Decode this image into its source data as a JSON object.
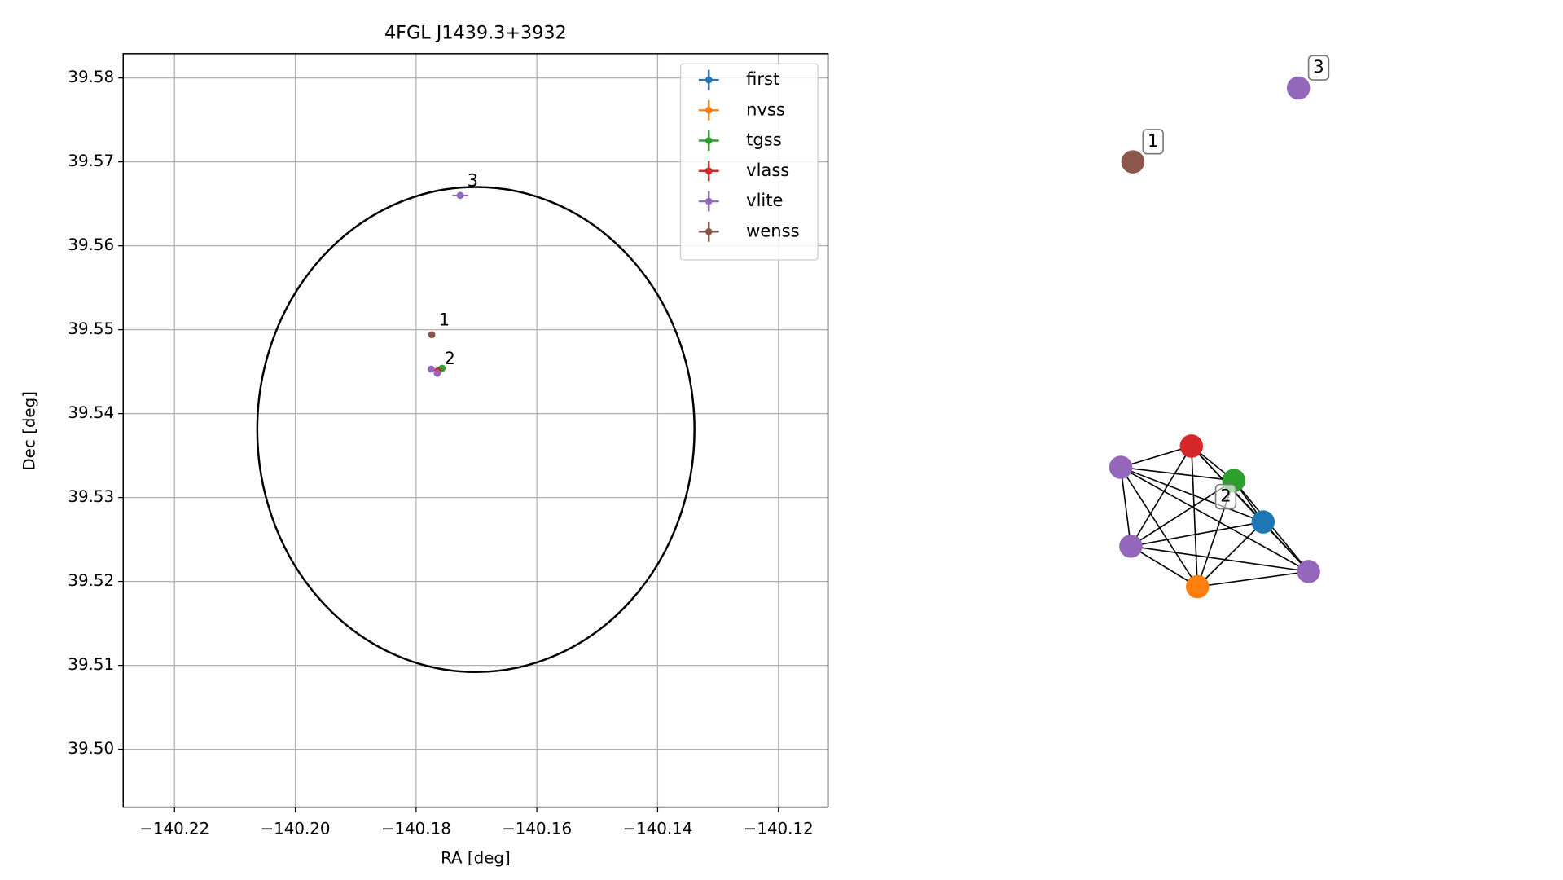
{
  "chart_data": [
    {
      "type": "scatter",
      "title": "4FGL J1439.3+3932",
      "x_label": "RA [deg]",
      "y_label": "Dec [deg]",
      "xlim": [
        -140.2285,
        -140.1118
      ],
      "ylim": [
        39.4931,
        39.5829
      ],
      "xticks": [
        {
          "value": -140.22,
          "label": "−140.22"
        },
        {
          "value": -140.2,
          "label": "−140.20"
        },
        {
          "value": -140.18,
          "label": "−140.18"
        },
        {
          "value": -140.16,
          "label": "−140.16"
        },
        {
          "value": -140.14,
          "label": "−140.14"
        },
        {
          "value": -140.12,
          "label": "−140.12"
        }
      ],
      "yticks": [
        {
          "value": 39.5,
          "label": "39.50"
        },
        39.51,
        39.52,
        39.53,
        39.54,
        39.55,
        39.56,
        39.57,
        39.58
      ],
      "grid": true,
      "legend": "upper right",
      "series": [
        {
          "name": "first",
          "color": "#1f77b4",
          "x": [
            -140.1763
          ],
          "values": [
            39.5451
          ],
          "xerr": [
            0.0003
          ],
          "yerr": [
            0.0003
          ]
        },
        {
          "name": "nvss",
          "color": "#ff7f0e",
          "x": [
            -140.1764
          ],
          "values": [
            39.545
          ],
          "xerr": [
            0.0003
          ],
          "yerr": [
            0.0003
          ]
        },
        {
          "name": "tgss",
          "color": "#2ca02c",
          "x": [
            -140.1757
          ],
          "values": [
            39.5454
          ],
          "xerr": [
            0.0003
          ],
          "yerr": [
            0.0003
          ]
        },
        {
          "name": "vlass",
          "color": "#d62728",
          "x": [
            -140.1764
          ],
          "values": [
            39.5451
          ],
          "xerr": [
            0.0003
          ],
          "yerr": [
            0.0003
          ]
        },
        {
          "name": "vlite",
          "color": "#9467bd",
          "x": [
            -140.1775,
            -140.1765,
            -140.1727
          ],
          "values": [
            39.5453,
            39.5448,
            39.566
          ],
          "xerr": [
            0.0004,
            0.0004,
            0.0013
          ],
          "yerr": [
            0.0003,
            0.0003,
            0.0004
          ]
        },
        {
          "name": "wenss",
          "color": "#8c564b",
          "x": [
            -140.1774
          ],
          "values": [
            39.5494
          ],
          "xerr": [
            0.0003
          ],
          "yerr": [
            0.0003
          ]
        }
      ],
      "ellipse": {
        "x": -140.1701,
        "y": 39.5381,
        "width": 0.0724,
        "height": 0.0578,
        "color": "#000000"
      },
      "annotations": [
        {
          "text": "1",
          "x": -140.1774,
          "y": 39.5494
        },
        {
          "text": "2",
          "x": -140.1765,
          "y": 39.5448
        },
        {
          "text": "3",
          "x": -140.1727,
          "y": 39.566
        }
      ]
    },
    {
      "type": "network",
      "nodes": [
        {
          "color": "#8c564b",
          "label": "1"
        },
        {
          "color": "#9467bd",
          "label": "3"
        },
        {
          "color": "#9467bd"
        },
        {
          "color": "#d62728"
        },
        {
          "color": "#2ca02c",
          "label": "2"
        },
        {
          "color": "#1f77b4"
        },
        {
          "color": "#9467bd"
        },
        {
          "color": "#ff7f0e"
        },
        {
          "color": "#9467bd"
        }
      ],
      "edges": [
        [
          2,
          3
        ],
        [
          2,
          4
        ],
        [
          2,
          5
        ],
        [
          2,
          6
        ],
        [
          2,
          7
        ],
        [
          2,
          8
        ],
        [
          3,
          4
        ],
        [
          3,
          5
        ],
        [
          3,
          6
        ],
        [
          3,
          7
        ],
        [
          3,
          8
        ],
        [
          4,
          5
        ],
        [
          4,
          6
        ],
        [
          4,
          7
        ],
        [
          4,
          8
        ],
        [
          5,
          6
        ],
        [
          5,
          7
        ],
        [
          5,
          8
        ],
        [
          6,
          7
        ],
        [
          6,
          8
        ],
        [
          7,
          8
        ]
      ]
    }
  ]
}
